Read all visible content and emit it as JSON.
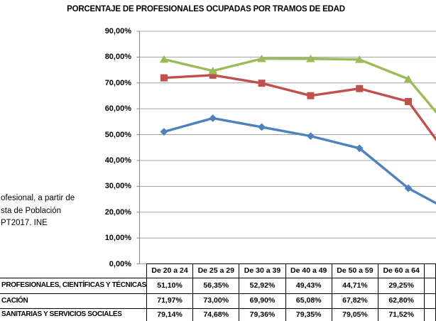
{
  "title": "PORCENTAJE DE PROFESIONALES OCUPADAS POR TRAMOS DE EDAD",
  "annotation": {
    "lines": [
      "ofesional, a partir de",
      "sta de Población",
      "PT2017. INE"
    ]
  },
  "chart_data": {
    "type": "line",
    "title": "PORCENTAJE DE PROFESIONALES OCUPADAS POR TRAMOS DE EDAD",
    "categories": [
      "De 20 a 24",
      "De 25 a 29",
      "De 30 a 39",
      "De 40 a 49",
      "De 50 a 59",
      "De 60 a 64"
    ],
    "series": [
      {
        "name": "PROFESIONALES, CIENTÍFICAS Y TÉCNICAS",
        "color": "#4F81BD",
        "marker": "diamond",
        "values": [
          51.1,
          56.35,
          52.92,
          49.43,
          44.71,
          29.25
        ],
        "value_at_right_crop": 22.9
      },
      {
        "name": "CACIÓN",
        "color": "#C0504D",
        "marker": "square",
        "values": [
          71.97,
          73.0,
          69.9,
          65.08,
          67.82,
          62.8
        ],
        "value_at_right_crop": 46.7
      },
      {
        "name": "SANITARIAS Y SERVICIOS SOCIALES",
        "color": "#9BBB59",
        "marker": "triangle",
        "values": [
          79.14,
          74.68,
          79.36,
          79.35,
          79.05,
          71.52
        ],
        "value_at_right_crop": 57.5
      }
    ],
    "ylabel_ticks": [
      "0,00%",
      "10,00%",
      "20,00%",
      "30,00%",
      "40,00%",
      "50,00%",
      "60,00%",
      "70,00%",
      "80,00%",
      "90,00%"
    ],
    "ylim": [
      0,
      90
    ],
    "grid": true,
    "grid_color": "#A0A0A0",
    "axis_color": "#808080",
    "legend_position": "none",
    "clipped_at_right": true,
    "clipped_at_left": true
  },
  "data_table": {
    "header": [
      "De 20 a 24",
      "De 25 a 29",
      "De 30 a 39",
      "De 40 a 49",
      "De 50 a 59",
      "De 60 a 64"
    ],
    "rows": [
      {
        "label": "PROFESIONALES, CIENTÍFICAS Y TÉCNICAS",
        "values": [
          "51,10%",
          "56,35%",
          "52,92%",
          "49,43%",
          "44,71%",
          "29,25%"
        ]
      },
      {
        "label": "CACIÓN",
        "values": [
          "71,97%",
          "73,00%",
          "69,90%",
          "65,08%",
          "67,82%",
          "62,80%"
        ]
      },
      {
        "label": "SANITARIAS Y SERVICIOS SOCIALES",
        "values": [
          "79,14%",
          "74,68%",
          "79,36%",
          "79,35%",
          "79,05%",
          "71,52%"
        ]
      }
    ],
    "border_color": "#000000"
  }
}
